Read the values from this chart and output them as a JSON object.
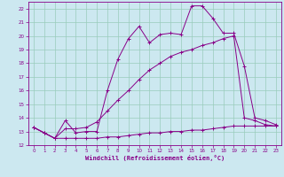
{
  "xlabel": "Windchill (Refroidissement éolien,°C)",
  "bg_color": "#cce8f0",
  "line_color": "#880088",
  "grid_color": "#99ccbb",
  "xlim": [
    -0.5,
    23.5
  ],
  "ylim": [
    12,
    22.5
  ],
  "xticks": [
    0,
    1,
    2,
    3,
    4,
    5,
    6,
    7,
    8,
    9,
    10,
    11,
    12,
    13,
    14,
    15,
    16,
    17,
    18,
    19,
    20,
    21,
    22,
    23
  ],
  "yticks": [
    12,
    13,
    14,
    15,
    16,
    17,
    18,
    19,
    20,
    21,
    22
  ],
  "line1_x": [
    0,
    1,
    2,
    3,
    4,
    5,
    6,
    7,
    8,
    9,
    10,
    11,
    12,
    13,
    14,
    15,
    16,
    17,
    18,
    19,
    20,
    21,
    22,
    23
  ],
  "line1_y": [
    13.3,
    12.9,
    12.5,
    12.5,
    12.5,
    12.5,
    12.5,
    12.6,
    12.6,
    12.7,
    12.8,
    12.9,
    12.9,
    13.0,
    13.0,
    13.1,
    13.1,
    13.2,
    13.3,
    13.4,
    13.4,
    13.4,
    13.4,
    13.4
  ],
  "line2_x": [
    0,
    1,
    2,
    3,
    4,
    5,
    6,
    7,
    8,
    9,
    10,
    11,
    12,
    13,
    14,
    15,
    16,
    17,
    18,
    19,
    20,
    21,
    22,
    23
  ],
  "line2_y": [
    13.3,
    12.9,
    12.5,
    13.2,
    13.2,
    13.3,
    13.7,
    14.5,
    15.3,
    16.0,
    16.8,
    17.5,
    18.0,
    18.5,
    18.8,
    19.0,
    19.3,
    19.5,
    19.8,
    20.0,
    14.0,
    13.8,
    13.5,
    13.4
  ],
  "line3_x": [
    0,
    1,
    2,
    3,
    4,
    5,
    6,
    7,
    8,
    9,
    10,
    11,
    12,
    13,
    14,
    15,
    16,
    17,
    18,
    19,
    20,
    21,
    22,
    23
  ],
  "line3_y": [
    13.3,
    12.9,
    12.5,
    13.8,
    12.9,
    13.0,
    13.0,
    16.0,
    18.3,
    19.8,
    20.7,
    19.5,
    20.1,
    20.2,
    20.1,
    22.2,
    22.2,
    21.3,
    20.2,
    20.2,
    17.8,
    14.0,
    13.8,
    13.5
  ],
  "marker": "+"
}
